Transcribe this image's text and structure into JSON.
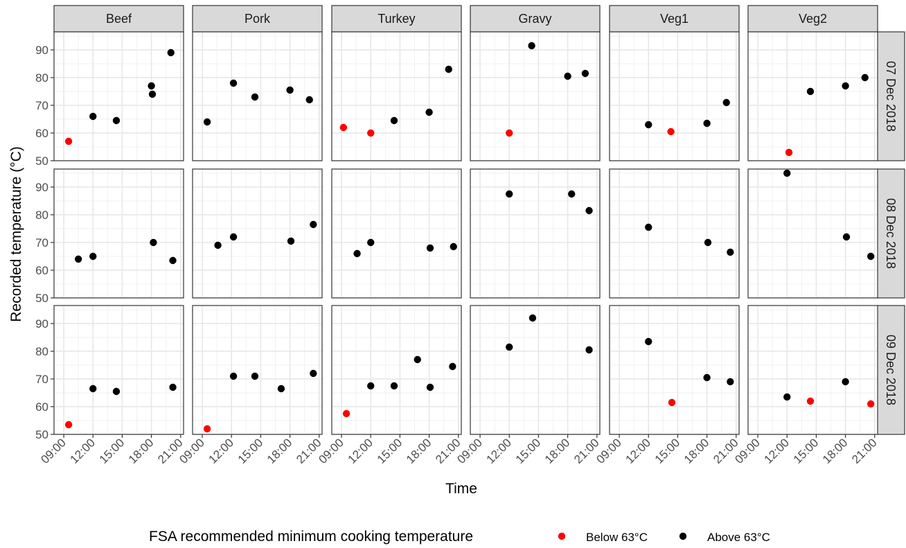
{
  "chart_data": {
    "type": "scatter",
    "xlabel": "Time",
    "ylabel": "Recorded temperature (°C)",
    "x_ticks": [
      "09:00",
      "12:00",
      "15:00",
      "18:00",
      "21:00"
    ],
    "x_tick_values": [
      9,
      12,
      15,
      18,
      21
    ],
    "xlim": [
      8,
      21.3
    ],
    "y_ticks": [
      "50",
      "60",
      "70",
      "80",
      "90"
    ],
    "y_tick_values": [
      50,
      60,
      70,
      80,
      90
    ],
    "ylim": [
      50,
      96.5
    ],
    "grid": true,
    "threshold": 63,
    "columns": [
      "Beef",
      "Pork",
      "Turkey",
      "Gravy",
      "Veg1",
      "Veg2"
    ],
    "rows": [
      "07 Dec 2018",
      "08 Dec 2018",
      "09 Dec 2018"
    ],
    "legend": {
      "title": "FSA recommended minimum cooking temperature",
      "position": "bottom",
      "items": [
        {
          "label": "Below 63°C",
          "color": "#ff0000"
        },
        {
          "label": "Above 63°C",
          "color": "#000000"
        }
      ]
    },
    "colors": {
      "below": "#ff0000",
      "above": "#000000"
    },
    "panels": [
      {
        "row": "07 Dec 2018",
        "column": "Beef",
        "points": [
          [
            9.5,
            57
          ],
          [
            12,
            66
          ],
          [
            14.4,
            64.5
          ],
          [
            18,
            77
          ],
          [
            18.1,
            74
          ],
          [
            20,
            89
          ]
        ]
      },
      {
        "row": "07 Dec 2018",
        "column": "Pork",
        "points": [
          [
            9.5,
            64
          ],
          [
            12.2,
            78
          ],
          [
            14.4,
            73
          ],
          [
            18,
            75.5
          ],
          [
            20,
            72
          ]
        ]
      },
      {
        "row": "07 Dec 2018",
        "column": "Turkey",
        "points": [
          [
            9.2,
            62
          ],
          [
            12,
            60
          ],
          [
            14.4,
            64.5
          ],
          [
            18,
            67.5
          ],
          [
            20,
            83
          ]
        ]
      },
      {
        "row": "07 Dec 2018",
        "column": "Gravy",
        "points": [
          [
            12,
            60
          ],
          [
            14.3,
            91.5
          ],
          [
            18,
            80.5
          ],
          [
            19.8,
            81.5
          ]
        ]
      },
      {
        "row": "07 Dec 2018",
        "column": "Veg1",
        "points": [
          [
            12,
            63
          ],
          [
            14.3,
            60.5
          ],
          [
            18,
            63.5
          ],
          [
            20,
            71
          ]
        ]
      },
      {
        "row": "07 Dec 2018",
        "column": "Veg2",
        "points": [
          [
            12.2,
            53
          ],
          [
            14.4,
            75
          ],
          [
            18,
            77
          ],
          [
            20,
            80
          ]
        ]
      },
      {
        "row": "08 Dec 2018",
        "column": "Beef",
        "points": [
          [
            10.5,
            64
          ],
          [
            12,
            65
          ],
          [
            18.2,
            70
          ],
          [
            20.2,
            63.5
          ]
        ]
      },
      {
        "row": "08 Dec 2018",
        "column": "Pork",
        "points": [
          [
            10.6,
            69
          ],
          [
            12.2,
            72
          ],
          [
            18.1,
            70.5
          ],
          [
            20.4,
            76.5
          ]
        ]
      },
      {
        "row": "08 Dec 2018",
        "column": "Turkey",
        "points": [
          [
            10.6,
            66
          ],
          [
            12,
            70
          ],
          [
            18.1,
            68
          ],
          [
            20.5,
            68.5
          ]
        ]
      },
      {
        "row": "08 Dec 2018",
        "column": "Gravy",
        "points": [
          [
            12,
            87.5
          ],
          [
            18.4,
            87.5
          ],
          [
            20.2,
            81.5
          ]
        ]
      },
      {
        "row": "08 Dec 2018",
        "column": "Veg1",
        "points": [
          [
            12,
            75.5
          ],
          [
            18.1,
            70
          ],
          [
            20.4,
            66.5
          ]
        ]
      },
      {
        "row": "08 Dec 2018",
        "column": "Veg2",
        "points": [
          [
            12,
            95
          ],
          [
            18.1,
            72
          ],
          [
            20.6,
            65
          ]
        ]
      },
      {
        "row": "09 Dec 2018",
        "column": "Beef",
        "points": [
          [
            9.5,
            53.5
          ],
          [
            12,
            66.5
          ],
          [
            14.4,
            65.5
          ],
          [
            20.2,
            67
          ]
        ]
      },
      {
        "row": "09 Dec 2018",
        "column": "Pork",
        "points": [
          [
            9.5,
            52
          ],
          [
            12.2,
            71
          ],
          [
            14.4,
            71
          ],
          [
            17.1,
            66.5
          ],
          [
            20.4,
            72
          ]
        ]
      },
      {
        "row": "09 Dec 2018",
        "column": "Turkey",
        "points": [
          [
            9.5,
            57.5
          ],
          [
            12,
            67.5
          ],
          [
            14.4,
            67.5
          ],
          [
            16.8,
            77
          ],
          [
            18.1,
            67
          ],
          [
            20.4,
            74.5
          ]
        ]
      },
      {
        "row": "09 Dec 2018",
        "column": "Gravy",
        "points": [
          [
            12,
            81.5
          ],
          [
            14.4,
            92
          ],
          [
            20.2,
            80.5
          ]
        ]
      },
      {
        "row": "09 Dec 2018",
        "column": "Veg1",
        "points": [
          [
            12,
            83.5
          ],
          [
            14.4,
            61.5
          ],
          [
            18,
            70.5
          ],
          [
            20.4,
            69
          ]
        ]
      },
      {
        "row": "09 Dec 2018",
        "column": "Veg2",
        "points": [
          [
            12,
            63.5
          ],
          [
            14.4,
            62
          ],
          [
            18,
            69
          ],
          [
            20.6,
            61
          ]
        ]
      }
    ]
  }
}
